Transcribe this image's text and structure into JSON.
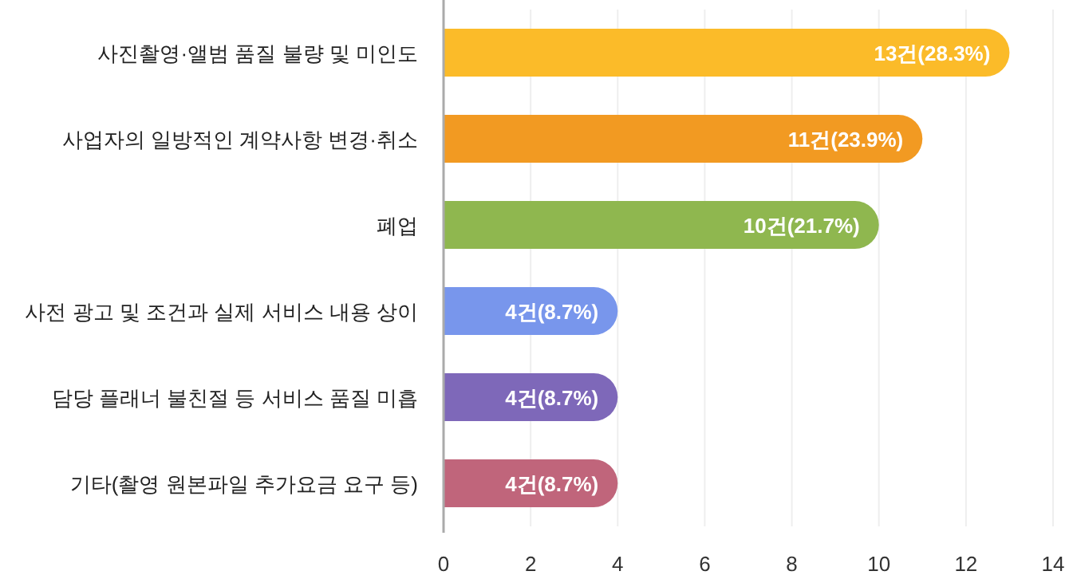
{
  "chart_data": {
    "type": "bar",
    "orientation": "horizontal",
    "categories": [
      "사진촬영·앨범 품질 불량 및 미인도",
      "사업자의 일방적인 계약사항 변경·취소",
      "폐업",
      "사전 광고 및 조건과 실제 서비스 내용 상이",
      "담당 플래너 불친절 등 서비스 품질 미흡",
      "기타(촬영 원본파일 추가요금 요구 등)"
    ],
    "values": [
      13,
      11,
      10,
      4,
      4,
      4
    ],
    "colors": [
      "#fbbb29",
      "#f29a22",
      "#8fb74f",
      "#7896ec",
      "#7e68b9",
      "#c0657b"
    ],
    "value_labels": [
      "13건(28.3%)",
      "11건(23.9%)",
      "10건(21.7%)",
      "4건(8.7%)",
      "4건(8.7%)",
      "4건(8.7%)"
    ],
    "xlim": [
      0,
      14
    ],
    "xticks": [
      0,
      2,
      4,
      6,
      8,
      10,
      12,
      14
    ],
    "grid": "x"
  }
}
